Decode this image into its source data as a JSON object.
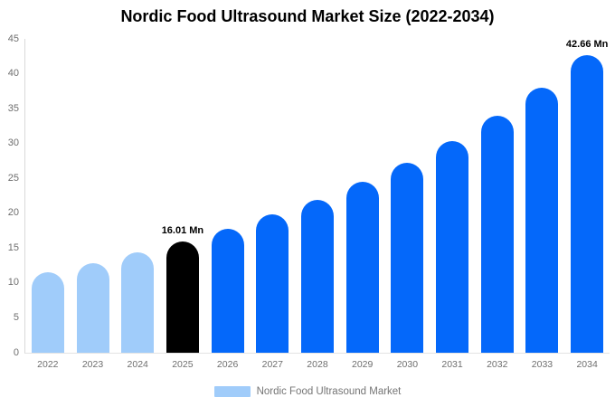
{
  "chart_data": {
    "type": "bar",
    "title": "Nordic Food Ultrasound Market Size (2022-2034)",
    "categories": [
      "2022",
      "2023",
      "2024",
      "2025",
      "2026",
      "2027",
      "2028",
      "2029",
      "2030",
      "2031",
      "2032",
      "2033",
      "2034"
    ],
    "values": [
      11.5,
      12.9,
      14.4,
      16.01,
      17.8,
      19.8,
      21.9,
      24.5,
      27.3,
      30.3,
      34.0,
      38.0,
      42.66
    ],
    "point_labels": [
      "",
      "",
      "",
      "16.01 Mn",
      "",
      "",
      "",
      "",
      "",
      "",
      "",
      "",
      "42.66 Mn"
    ],
    "point_colors": [
      "#A0CCFA",
      "#A0CCFA",
      "#A0CCFA",
      "#000000",
      "#0468FA",
      "#0468FA",
      "#0468FA",
      "#0468FA",
      "#0468FA",
      "#0468FA",
      "#0468FA",
      "#0468FA",
      "#0468FA"
    ],
    "xlabel": "",
    "ylabel": "",
    "ylim": [
      0,
      45
    ],
    "yticks": [
      0,
      5,
      10,
      15,
      20,
      25,
      30,
      35,
      40,
      45
    ],
    "grid": false,
    "legend_position": "bottom",
    "legend": [
      {
        "label": "Nordic Food Ultrasound Market",
        "swatch_color": "#A0CCFA"
      }
    ],
    "colors": {
      "title": "#000000",
      "tick_label": "#6E6E6E",
      "axis_line": "#D9D9D9",
      "baseline": "#E4E4E4",
      "data_label": "#000000",
      "legend_text": "#757575"
    }
  }
}
